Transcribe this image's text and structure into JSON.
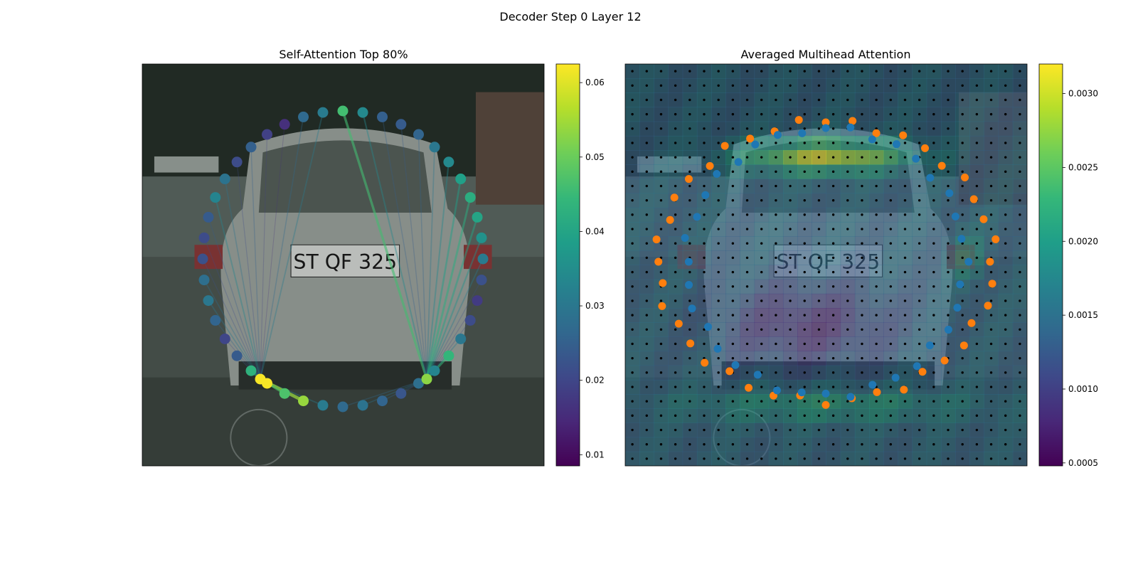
{
  "figure": {
    "title": "Decoder Step 0 Layer 12"
  },
  "colors": {
    "viridis": [
      "#440154",
      "#482878",
      "#3e4989",
      "#31688e",
      "#26828e",
      "#1f9e89",
      "#35b779",
      "#6ece58",
      "#b5de2b",
      "#fde725"
    ],
    "orange_points": "#ff7f0e",
    "blue_points": "#1f77b4",
    "grid_dots": "#000000"
  },
  "chart_data": [
    {
      "type": "scatter",
      "title": "Self-Attention Top 80%",
      "background": "street-scene photo: rear of a silver hatchback with license plate",
      "plate_text": "ST QF 325",
      "ring_points_description": "ellipse of query points around the car; two source points emit attention lines",
      "sources": [
        {
          "side": "left",
          "value": 0.062
        },
        {
          "side": "right",
          "value": 0.053
        }
      ],
      "ring_values": [
        0.046,
        0.034,
        0.025,
        0.024,
        0.026,
        0.03,
        0.034,
        0.039,
        0.042,
        0.04,
        0.036,
        0.031,
        0.022,
        0.018,
        0.021,
        0.03,
        0.044,
        0.033,
        0.028,
        0.023,
        0.026,
        0.029,
        0.027,
        0.031,
        0.054,
        0.047,
        0.062,
        0.043,
        0.024,
        0.02,
        0.026,
        0.03,
        0.028,
        0.022,
        0.021,
        0.024,
        0.033,
        0.029,
        0.021,
        0.025,
        0.019,
        0.016,
        0.027,
        0.031
      ],
      "colorbar": {
        "range": [
          0.0085,
          0.0625
        ],
        "ticks": [
          "0.01",
          "0.02",
          "0.03",
          "0.04",
          "0.05",
          "0.06"
        ]
      }
    },
    {
      "type": "heatmap",
      "title": "Averaged Multihead Attention",
      "background": "same street-scene photo overlaid with attention heatmap",
      "grid": {
        "cols": 28,
        "rows": 28
      },
      "series": [
        {
          "color": "orange",
          "role": "outer ring of reference points"
        },
        {
          "color": "blue",
          "role": "inner ring of reference points"
        }
      ],
      "colorbar": {
        "range": [
          0.00048,
          0.0032
        ],
        "ticks": [
          "0.0005",
          "0.0010",
          "0.0015",
          "0.0020",
          "0.0025",
          "0.0030"
        ]
      }
    }
  ]
}
